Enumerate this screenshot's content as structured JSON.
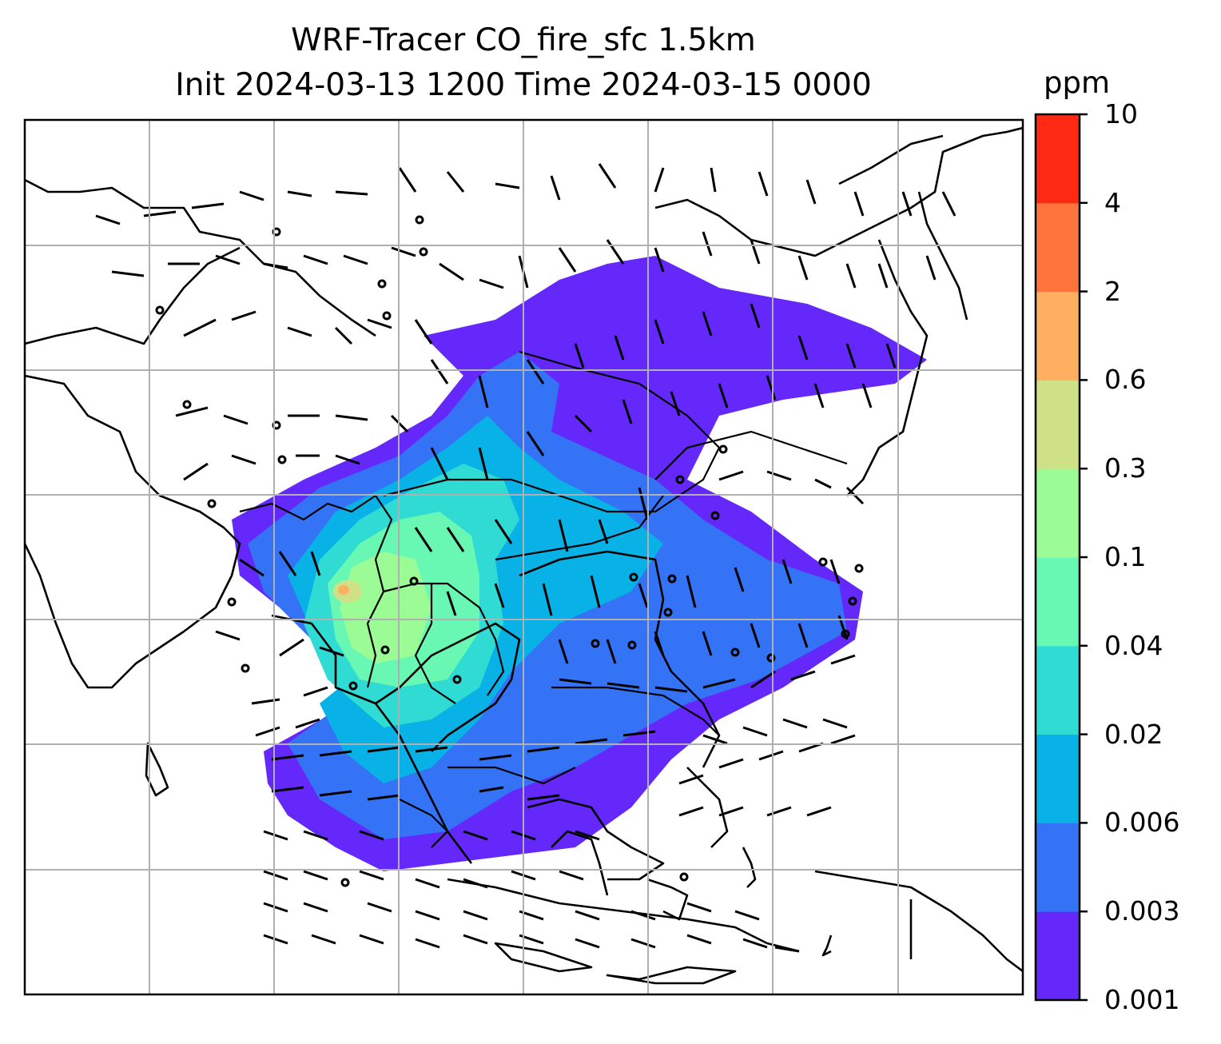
{
  "chart_data": {
    "type": "heatmap",
    "title": "WRF-Tracer CO_fire_sfc 1.5km",
    "subtitle": "Init 2024-03-13 1200 Time 2024-03-15 0000",
    "colorbar": {
      "unit": "ppm",
      "levels": [
        "0.001",
        "0.003",
        "0.006",
        "0.02",
        "0.04",
        "0.1",
        "0.3",
        "0.6",
        "2",
        "4",
        "10"
      ],
      "colors": [
        "#6428fa",
        "#3473f6",
        "#08b2e6",
        "#2fdbd2",
        "#68f8b4",
        "#9bfb95",
        "#cfe187",
        "#ffaf5f",
        "#ff733c",
        "#ff2a14"
      ]
    },
    "grid": true,
    "overlays": [
      "coastlines",
      "country-borders",
      "wind-barbs"
    ]
  }
}
